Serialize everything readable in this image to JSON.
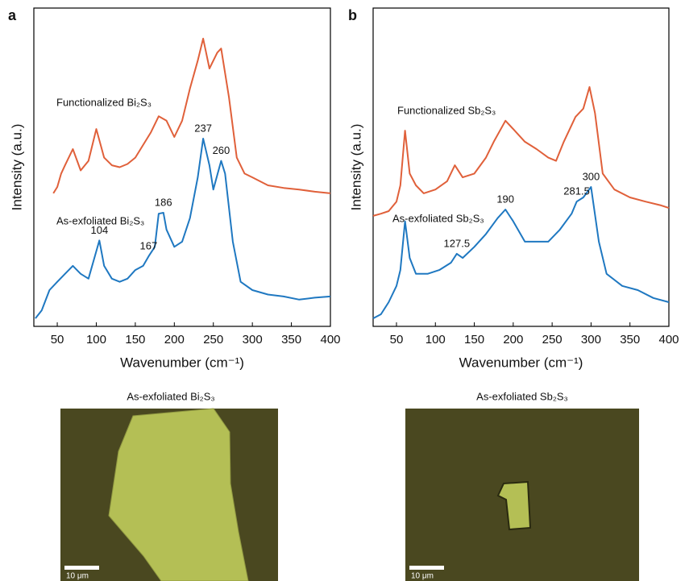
{
  "chart_data": [
    {
      "type": "line",
      "panel": "a",
      "xlabel": "Wavenumber (cm⁻¹)",
      "ylabel": "Intensity (a.u.)",
      "xlim": [
        20,
        400
      ],
      "xticks": [
        50,
        100,
        150,
        200,
        250,
        300,
        350,
        400
      ],
      "ylim": [
        0,
        100
      ],
      "series": [
        {
          "name": "Functionalized Bi₂S₃",
          "color": "#e0603a",
          "x": [
            45,
            50,
            55,
            60,
            70,
            80,
            90,
            100,
            110,
            120,
            130,
            140,
            150,
            160,
            170,
            180,
            190,
            200,
            210,
            220,
            230,
            237,
            245,
            255,
            260,
            270,
            280,
            290,
            300,
            320,
            340,
            360,
            380,
            400
          ],
          "values": [
            41.8,
            43.8,
            48,
            50.6,
            55.7,
            49,
            52,
            62,
            53,
            50.6,
            50,
            51,
            53,
            57,
            61,
            66,
            64.6,
            59.5,
            64.6,
            74.7,
            83.5,
            90.4,
            81,
            86,
            87.3,
            72,
            53,
            48,
            46.8,
            44.3,
            43.5,
            43,
            42.3,
            41.8
          ]
        },
        {
          "name": "As-exfoliated Bi₂S₃",
          "color": "#1f78c1",
          "x": [
            22,
            30,
            40,
            50,
            60,
            70,
            80,
            90,
            104,
            110,
            120,
            130,
            140,
            150,
            160,
            167,
            175,
            180,
            186,
            190,
            200,
            210,
            220,
            230,
            237,
            245,
            250,
            260,
            265,
            275,
            285,
            300,
            320,
            340,
            360,
            380,
            400
          ],
          "values": [
            2.5,
            5,
            11.4,
            14,
            16.5,
            19,
            16.5,
            15,
            27,
            19,
            15,
            14,
            15,
            17.7,
            19,
            22,
            25,
            35.4,
            35.7,
            30.4,
            25,
            26.6,
            34,
            46.8,
            59,
            50.6,
            43,
            52,
            48,
            26.6,
            14,
            11.4,
            10,
            9.4,
            8.4,
            9,
            9.4
          ],
          "annotations": [
            104,
            167,
            186,
            237,
            260
          ]
        }
      ]
    },
    {
      "type": "line",
      "panel": "b",
      "xlabel": "Wavenumber (cm⁻¹)",
      "ylabel": "Intensity (a.u.)",
      "xlim": [
        20,
        400
      ],
      "xticks": [
        50,
        100,
        150,
        200,
        250,
        300,
        350,
        400
      ],
      "ylim": [
        0,
        100
      ],
      "series": [
        {
          "name": "Functionalized Sb₂S₃",
          "color": "#e0603a",
          "x": [
            20,
            30,
            40,
            50,
            55,
            61,
            67,
            75,
            85,
            100,
            115,
            125,
            135,
            150,
            165,
            175,
            190,
            200,
            215,
            230,
            245,
            255,
            265,
            280,
            290,
            298,
            305,
            315,
            330,
            350,
            370,
            390,
            400
          ],
          "values": [
            34.7,
            35.4,
            36.2,
            39.2,
            44.3,
            61.5,
            48,
            44.3,
            41.8,
            43,
            45.6,
            50.6,
            46.8,
            48,
            53,
            58,
            64.6,
            62,
            58,
            55.7,
            53,
            52,
            58,
            65.8,
            68.4,
            75.2,
            67,
            48,
            43,
            40.5,
            39.2,
            38,
            37.2
          ]
        },
        {
          "name": "As-exfoliated Sb₂S₃",
          "color": "#1f78c1",
          "x": [
            20,
            30,
            40,
            50,
            55,
            61,
            67,
            75,
            90,
            105,
            120,
            127.5,
            135,
            150,
            165,
            180,
            190,
            200,
            215,
            230,
            245,
            260,
            275,
            281.5,
            290,
            300,
            310,
            320,
            340,
            360,
            380,
            400
          ],
          "values": [
            2.5,
            3.8,
            7.6,
            12.7,
            17.7,
            33,
            21.5,
            16.5,
            16.5,
            17.7,
            20,
            22.8,
            21.5,
            25,
            29,
            34,
            36.7,
            33,
            26.6,
            26.6,
            26.6,
            30.4,
            35.4,
            39.2,
            40.5,
            43.8,
            26.6,
            16.5,
            12.7,
            11.4,
            8.9,
            7.6
          ],
          "annotations": [
            127.5,
            190,
            281.5,
            300
          ]
        }
      ]
    }
  ],
  "images": [
    {
      "title": "As-exfoliated Bi₂S₃",
      "scale_bar": "10 μm"
    },
    {
      "title": "As-exfoliated Sb₂S₃",
      "scale_bar": "10 μm"
    }
  ]
}
